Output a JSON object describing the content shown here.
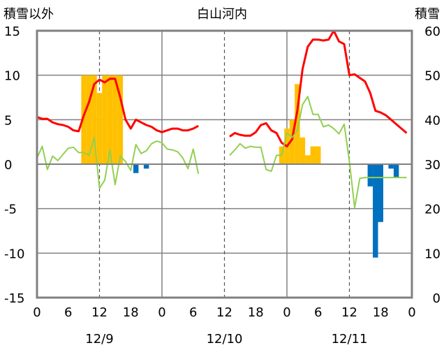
{
  "chart_data": {
    "type": "bar+line",
    "title": "白山河内",
    "ylabel_left": "積雪以外",
    "ylabel_right": "積雪",
    "ylim_left": [
      -15,
      15
    ],
    "ylim_right": [
      0,
      60
    ],
    "yticks_left": [
      "15",
      "10",
      "5",
      "0",
      "-5",
      "-10",
      "-15"
    ],
    "yticks_right": [
      "60",
      "50",
      "40",
      "30",
      "20",
      "10",
      "0"
    ],
    "x_unit": "hours since 12/9 00:00",
    "xlim": [
      0,
      72
    ],
    "xtick_labels": [
      "0",
      "6",
      "12",
      "18",
      "0",
      "6",
      "12",
      "18",
      "0",
      "6",
      "12",
      "18",
      "0"
    ],
    "date_labels": [
      "12/9",
      "12/10",
      "12/11"
    ],
    "grid": true,
    "series": [
      {
        "kind": "bar",
        "color": "#FFC000",
        "x": [
          9,
          10,
          11,
          12,
          13,
          14,
          15,
          16,
          47,
          48,
          49,
          50,
          51,
          52,
          53,
          54,
          55
        ],
        "values": [
          10,
          10,
          10,
          8,
          10,
          10,
          10,
          10,
          2,
          4,
          5,
          9,
          3,
          1,
          2,
          2,
          0
        ]
      },
      {
        "kind": "bar",
        "color": "#0070C0",
        "x": [
          17,
          18,
          19,
          20,
          21,
          55,
          56,
          57,
          58,
          59,
          60,
          61,
          62,
          63,
          64,
          65,
          66,
          67,
          68,
          69,
          70,
          71
        ],
        "values": [
          0,
          0,
          -1,
          0,
          -0.5,
          0,
          0,
          0,
          0,
          0,
          0,
          0,
          0,
          0,
          -2.5,
          -10.5,
          -6.5,
          0,
          -0.5,
          -1.5,
          0,
          0
        ]
      },
      {
        "kind": "line",
        "color": "#FF0000",
        "width": 3,
        "x": [
          0,
          1,
          2,
          3,
          4,
          5,
          6,
          7,
          8,
          9,
          10,
          11,
          12,
          13,
          14,
          15,
          16,
          17,
          18,
          19,
          20,
          21,
          22,
          23,
          24,
          25,
          26,
          27,
          28,
          29,
          30,
          31,
          37,
          38,
          39,
          40,
          41,
          42,
          43,
          44,
          45,
          46,
          47,
          48,
          49,
          50,
          51,
          52,
          53,
          54,
          55,
          56,
          57,
          58,
          59,
          60,
          61,
          62,
          63,
          64,
          65,
          66,
          67,
          68,
          69,
          70,
          71
        ],
        "values": [
          5.3,
          5.1,
          5.1,
          4.7,
          4.5,
          4.4,
          4.2,
          3.8,
          3.7,
          5.5,
          7.0,
          9.0,
          9.5,
          9.2,
          9.6,
          9.6,
          7.5,
          5.0,
          4.0,
          5.0,
          4.7,
          4.4,
          4.2,
          3.8,
          3.6,
          3.8,
          4.0,
          4.0,
          3.8,
          3.8,
          4.0,
          4.3,
          3.1,
          3.5,
          3.3,
          3.2,
          3.2,
          3.6,
          4.4,
          4.6,
          3.8,
          3.5,
          2.4,
          2.0,
          2.8,
          6.0,
          10.7,
          13.2,
          14.0,
          14.0,
          13.9,
          14.0,
          15.0,
          13.8,
          13.5,
          10.0,
          10.1,
          9.7,
          9.3,
          8.0,
          6.0,
          5.8,
          5.5,
          5.0,
          4.5,
          4.0,
          3.5
        ]
      },
      {
        "kind": "line",
        "color": "#92D050",
        "width": 2,
        "x": [
          0,
          1,
          2,
          3,
          4,
          5,
          6,
          7,
          8,
          9,
          10,
          11,
          12,
          13,
          14,
          15,
          16,
          17,
          18,
          19,
          20,
          21,
          22,
          23,
          24,
          25,
          26,
          27,
          28,
          29,
          30,
          31,
          37,
          38,
          39,
          40,
          41,
          42,
          43,
          44,
          45,
          46,
          47,
          48,
          49,
          50,
          51,
          52,
          53,
          54,
          55,
          56,
          57,
          58,
          59,
          60,
          61,
          62,
          63,
          64,
          65,
          66,
          67,
          68,
          69,
          70,
          71
        ],
        "values": [
          0.7,
          2.0,
          -0.6,
          0.9,
          0.4,
          1.1,
          1.8,
          1.9,
          1.3,
          1.3,
          1.0,
          3.0,
          -2.7,
          -1.8,
          1.6,
          -2.3,
          0.9,
          0.3,
          -0.7,
          2.2,
          1.2,
          1.5,
          2.3,
          2.6,
          2.4,
          1.7,
          1.6,
          1.4,
          0.7,
          -0.5,
          1.7,
          -1.1,
          1.0,
          1.6,
          2.3,
          1.8,
          2.0,
          1.9,
          1.9,
          -0.6,
          -0.8,
          1.0,
          1.0,
          3.5,
          3.0,
          3.8,
          6.7,
          7.6,
          5.6,
          5.6,
          4.2,
          4.4,
          4.0,
          3.4,
          4.5,
          0.3,
          -4.9,
          -1.6,
          -1.5,
          -1.5,
          -1.5,
          -1.5,
          -1.5,
          -1.5,
          -1.5,
          -1.5,
          -1.5
        ]
      },
      {
        "kind": "line",
        "color": "#7030A0",
        "width": 3,
        "x": [
          0,
          1,
          2,
          3,
          4,
          5,
          6,
          7,
          8,
          9,
          10,
          11,
          12,
          13,
          14,
          15,
          16,
          17,
          18,
          19,
          20,
          21,
          22,
          23,
          24,
          25,
          26,
          27,
          28,
          29,
          30,
          31,
          37,
          38,
          39,
          40,
          41,
          42,
          43,
          44,
          45,
          46,
          47,
          48,
          49,
          50,
          51,
          52,
          53,
          54,
          55,
          56,
          57,
          58,
          59,
          60,
          61,
          62,
          63,
          64,
          65,
          66,
          67,
          68,
          69,
          70,
          71
        ],
        "values": [
          -15,
          -15,
          -15,
          -15,
          -15,
          -15,
          -15,
          -15,
          -15,
          -15,
          -15,
          -15,
          -15,
          -15,
          -15,
          -15,
          -15,
          -15,
          -15,
          -15,
          -15,
          -15,
          -15,
          -15,
          -15,
          -15,
          -15,
          -15,
          -15,
          -15,
          -15,
          -15,
          -15,
          -15,
          -15,
          -15,
          -15,
          -15,
          -15,
          -15,
          -15,
          -15,
          -15,
          -15,
          -15,
          -15,
          -15,
          -15,
          -15,
          -15,
          -15,
          -15,
          -15,
          -15,
          -15,
          -15,
          -15,
          -15,
          -15,
          -15,
          -15,
          -15,
          -15,
          -15,
          -15,
          -15,
          -15
        ]
      }
    ]
  }
}
